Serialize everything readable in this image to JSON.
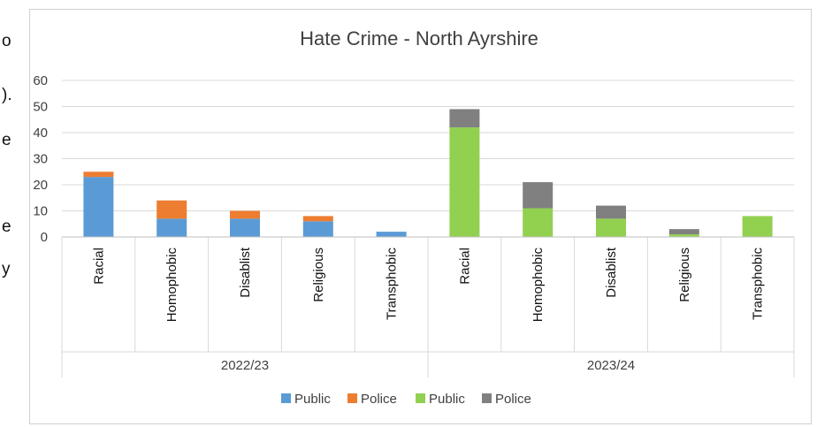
{
  "edge_text": [
    "o",
    ").",
    "e",
    "e",
    "y"
  ],
  "chart_data": {
    "type": "bar",
    "stacked": true,
    "title": "Hate Crime - North Ayrshire",
    "ylim": [
      0,
      60
    ],
    "yticks": [
      0,
      10,
      20,
      30,
      40,
      50,
      60
    ],
    "grid": true,
    "legend_position": "bottom",
    "groups": [
      {
        "label": "2022/23",
        "categories": [
          "Racial",
          "Homophobic",
          "Disablist",
          "Religious",
          "Transphobic"
        ],
        "series": [
          {
            "name": "Public",
            "color": "#5b9bd5",
            "values": [
              23,
              7,
              7,
              6,
              2
            ]
          },
          {
            "name": "Police",
            "color": "#ed7d31",
            "values": [
              2,
              7,
              3,
              2,
              0
            ]
          }
        ]
      },
      {
        "label": "2023/24",
        "categories": [
          "Racial",
          "Homophobic",
          "Disablist",
          "Religious",
          "Transphobic"
        ],
        "series": [
          {
            "name": "Public",
            "color": "#92d050",
            "values": [
              42,
              11,
              7,
              1,
              8
            ]
          },
          {
            "name": "Police",
            "color": "#808080",
            "values": [
              7,
              10,
              5,
              2,
              0
            ]
          }
        ]
      }
    ],
    "legend": [
      {
        "label": "Public",
        "color": "#5b9bd5"
      },
      {
        "label": "Police",
        "color": "#ed7d31"
      },
      {
        "label": "Public",
        "color": "#92d050"
      },
      {
        "label": "Police",
        "color": "#808080"
      }
    ]
  }
}
